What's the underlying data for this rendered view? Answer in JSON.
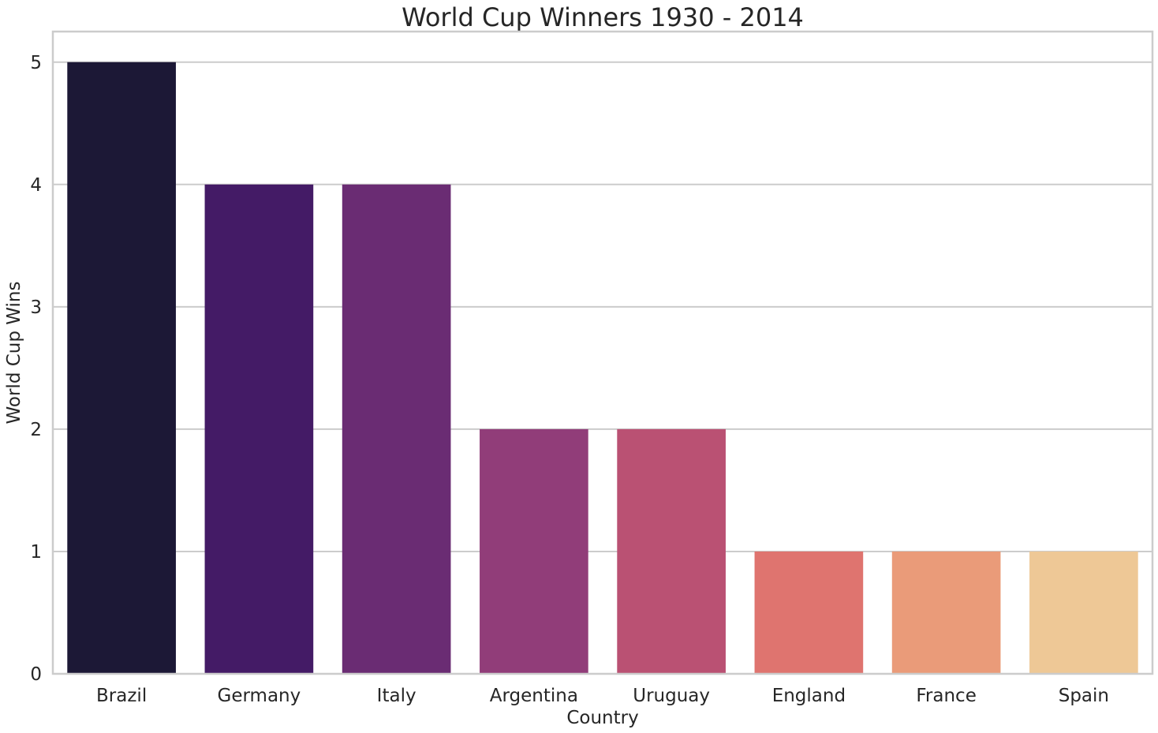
{
  "chart_data": {
    "type": "bar",
    "title": "World Cup Winners 1930 - 2014",
    "xlabel": "Country",
    "ylabel": "World Cup Wins",
    "categories": [
      "Brazil",
      "Germany",
      "Italy",
      "Argentina",
      "Uruguay",
      "England",
      "France",
      "Spain"
    ],
    "values": [
      5,
      4,
      4,
      2,
      2,
      1,
      1,
      1
    ],
    "colors": [
      "#1c1836",
      "#441b66",
      "#6a2c73",
      "#913d79",
      "#ba5173",
      "#df746f",
      "#ea9b79",
      "#eec896"
    ],
    "ylim": [
      0,
      5.25
    ],
    "yticks": [
      0,
      1,
      2,
      3,
      4,
      5
    ],
    "grid": true,
    "grid_axis": "y",
    "legend": "none"
  }
}
